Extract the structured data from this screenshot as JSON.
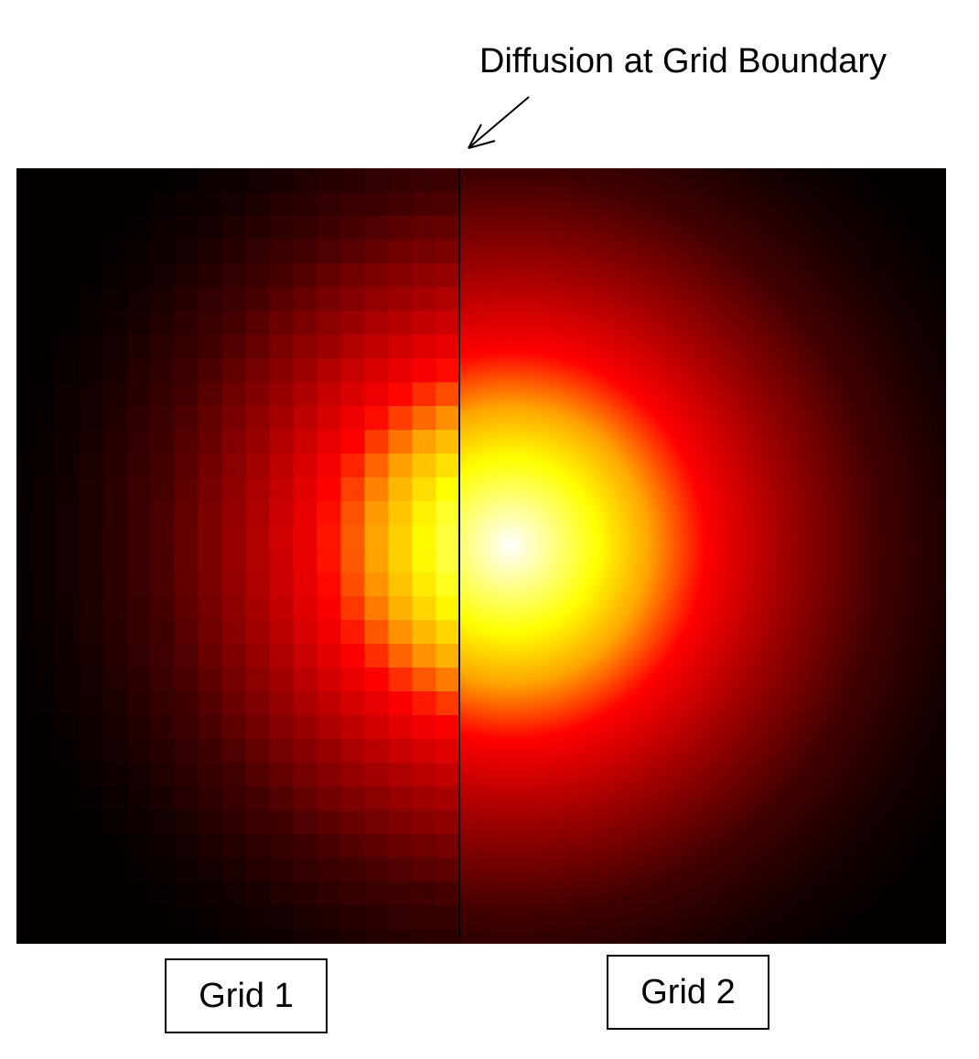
{
  "annotation": {
    "text": "Diffusion at Grid Boundary"
  },
  "labels": {
    "grid1": "Grid 1",
    "grid2": "Grid 2"
  },
  "colors": {
    "background": "#ffffff",
    "colormap": [
      "#000000",
      "#8b0000",
      "#ff0000",
      "#ff8c00",
      "#ffff00",
      "#ffffff"
    ],
    "boundary_line": "#000000"
  }
}
